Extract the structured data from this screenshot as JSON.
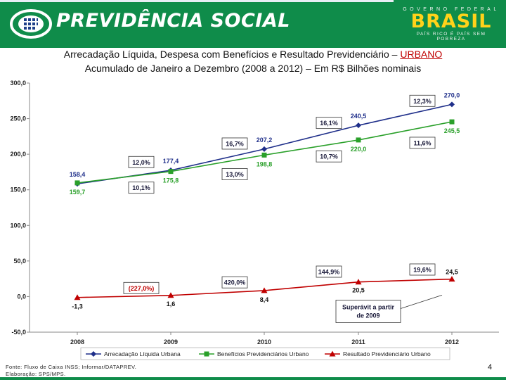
{
  "header": {
    "brand": "PREVIDÊNCIA SOCIAL",
    "gov_top": "GOVERNO FEDERAL",
    "gov_main": "BRASIL",
    "gov_bottom": "PAÍS RICO É PAÍS SEM POBREZA"
  },
  "title": {
    "line1_prefix": "Arrecadação Líquida, Despesa com Benefícios e Resultado Previdenciário – ",
    "line1_highlight": "URBANO",
    "line2": "Acumulado de Janeiro a Dezembro (2008 a 2012) – Em R$ Bilhões nominais"
  },
  "chart_data": {
    "type": "line",
    "x": [
      "2008",
      "2009",
      "2010",
      "2011",
      "2012"
    ],
    "ylim": [
      -50,
      300
    ],
    "yticks": [
      -50,
      0,
      50,
      100,
      150,
      200,
      250,
      300
    ],
    "ytick_labels": [
      "-50,0",
      "0,0",
      "50,0",
      "100,0",
      "150,0",
      "200,0",
      "250,0",
      "300,0"
    ],
    "series": [
      {
        "name": "Arrecadação Líquida Urbana",
        "color": "#1f2f8a",
        "marker": "diamond",
        "values": [
          158.4,
          177.4,
          207.2,
          240.5,
          270.0
        ],
        "labels": [
          "158,4",
          "177,4",
          "207,2",
          "240,5",
          "270,0"
        ],
        "label_color": "#1f2f8a"
      },
      {
        "name": "Benefícios Previdenciários Urbano",
        "color": "#2aa02a",
        "marker": "square",
        "values": [
          159.7,
          175.8,
          198.8,
          220.0,
          245.5
        ],
        "labels": [
          "159,7",
          "175,8",
          "198,8",
          "220,0",
          "245,5"
        ],
        "label_color": "#2aa02a"
      },
      {
        "name": "Resultado Previdenciário Urbano",
        "color": "#c00000",
        "marker": "triangle",
        "values": [
          -1.3,
          1.6,
          8.4,
          20.5,
          24.5
        ],
        "labels": [
          "-1,3",
          "1,6",
          "8,4",
          "20,5",
          "24,5"
        ],
        "label_color": "#111111"
      }
    ],
    "annotations": [
      {
        "text": "12,0%",
        "x": "2009",
        "y": 189
      },
      {
        "text": "16,7%",
        "x": "2010",
        "y": 215
      },
      {
        "text": "16,1%",
        "x": "2011",
        "y": 244
      },
      {
        "text": "12,3%",
        "x": "2012",
        "y": 275
      },
      {
        "text": "10,1%",
        "x": "2009",
        "y": 153
      },
      {
        "text": "13,0%",
        "x": "2010",
        "y": 172
      },
      {
        "text": "10,7%",
        "x": "2011",
        "y": 197
      },
      {
        "text": "11,6%",
        "x": "2012",
        "y": 216
      },
      {
        "text": "(227,0%)",
        "x": "2009",
        "y": 12,
        "color": "#c00000"
      },
      {
        "text": "420,0%",
        "x": "2010",
        "y": 20
      },
      {
        "text": "144,9%",
        "x": "2011",
        "y": 35
      },
      {
        "text": "19,6%",
        "x": "2012",
        "y": 38
      }
    ],
    "callout": {
      "text_line1": "Superávit a partir",
      "text_line2": "de 2009"
    },
    "grid": false,
    "legend_position": "bottom"
  },
  "footer": {
    "source_line1": "Fonte: Fluxo de Caixa INSS; Informar/DATAPREV.",
    "source_line2": "Elaboração: SPS/MPS.",
    "page_number": "4"
  }
}
